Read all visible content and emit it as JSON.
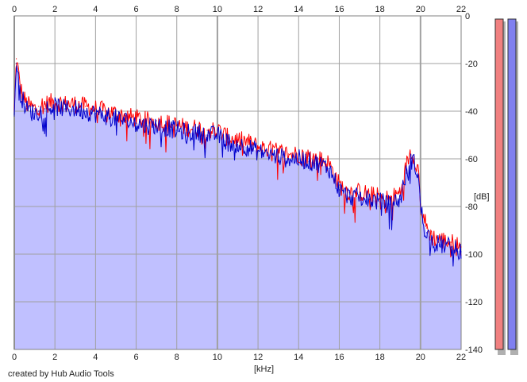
{
  "footer": {
    "credit": "created by Hub Audio Tools"
  },
  "colors": {
    "background": "#ffffff",
    "grid": "#a0a0a0",
    "fill": "#c0c0ff",
    "left_channel": "#ff0000",
    "right_channel": "#0000cc",
    "meter_left": "#f08080",
    "meter_right": "#8080f0"
  },
  "chart_data": {
    "type": "line",
    "xlabel": "[kHz]",
    "ylabel": "[dB]",
    "xlim": [
      0,
      22
    ],
    "ylim": [
      -140,
      0
    ],
    "x_ticks": [
      0,
      2,
      4,
      6,
      8,
      10,
      12,
      14,
      16,
      18,
      20,
      22
    ],
    "y_ticks": [
      0,
      -20,
      -40,
      -60,
      -80,
      -100,
      -120,
      -140
    ],
    "grid": true,
    "x": [
      0.0,
      0.1,
      0.2,
      0.3,
      0.4,
      0.5,
      0.6,
      0.8,
      1.0,
      1.2,
      1.5,
      2.0,
      2.5,
      3.0,
      3.5,
      4.0,
      4.5,
      5.0,
      5.5,
      6.0,
      6.5,
      7.0,
      7.5,
      8.0,
      8.5,
      9.0,
      9.5,
      10.0,
      10.5,
      11.0,
      11.5,
      12.0,
      12.5,
      13.0,
      13.5,
      14.0,
      14.5,
      15.0,
      15.5,
      16.0,
      16.5,
      17.0,
      17.5,
      18.0,
      18.5,
      19.0,
      19.3,
      19.5,
      19.7,
      19.9,
      20.0,
      20.3,
      20.6,
      21.0,
      21.5,
      22.0
    ],
    "series": [
      {
        "values": [
          -40,
          -18,
          -22,
          -30,
          -33,
          -35,
          -37,
          -38,
          -39,
          -38,
          -37,
          -36,
          -37,
          -37,
          -38,
          -39,
          -40,
          -41,
          -42,
          -43,
          -44,
          -44,
          -45,
          -46,
          -47,
          -47,
          -48,
          -48,
          -51,
          -52,
          -53,
          -55,
          -56,
          -57,
          -58,
          -58,
          -59,
          -60,
          -62,
          -71,
          -74,
          -74,
          -75,
          -76,
          -77,
          -74,
          -63,
          -57,
          -59,
          -65,
          -79,
          -89,
          -93,
          -94,
          -95,
          -97
        ]
      },
      {
        "values": [
          -42,
          -20,
          -24,
          -32,
          -35,
          -37,
          -39,
          -40,
          -41,
          -40,
          -39,
          -38,
          -39,
          -39,
          -40,
          -41,
          -42,
          -43,
          -44,
          -45,
          -46,
          -46,
          -47,
          -48,
          -49,
          -49,
          -50,
          -50,
          -53,
          -54,
          -55,
          -57,
          -58,
          -59,
          -60,
          -60,
          -61,
          -62,
          -64,
          -73,
          -76,
          -76,
          -77,
          -78,
          -79,
          -77,
          -66,
          -60,
          -62,
          -67,
          -81,
          -91,
          -95,
          -96,
          -97,
          -99
        ]
      }
    ]
  }
}
